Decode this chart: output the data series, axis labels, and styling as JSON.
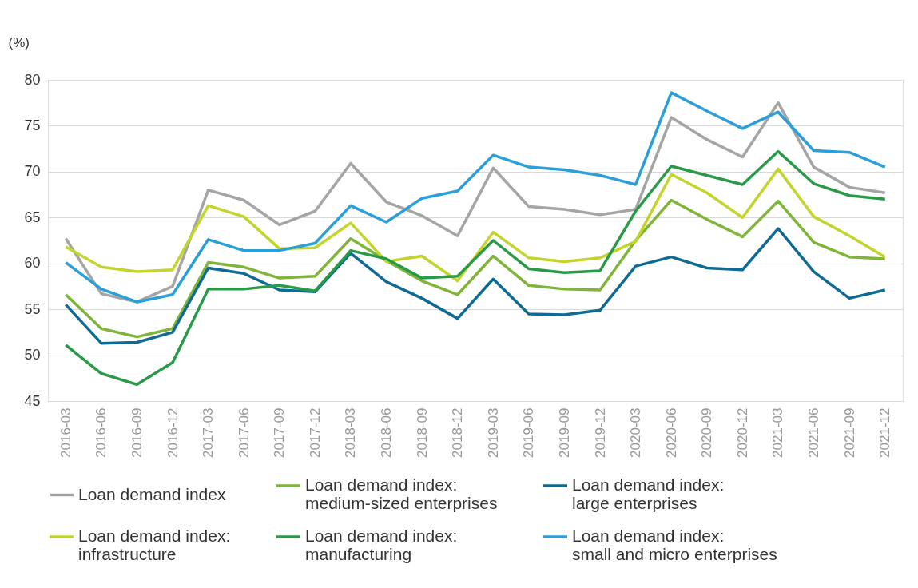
{
  "chart_data": {
    "type": "line",
    "ylabel": "(%)",
    "categories": [
      "2016-03",
      "2016-06",
      "2016-09",
      "2016-12",
      "2017-03",
      "2017-06",
      "2017-09",
      "2017-12",
      "2018-03",
      "2018-06",
      "2018-09",
      "2018-12",
      "2019-03",
      "2019-06",
      "2019-09",
      "2019-12",
      "2020-03",
      "2020-06",
      "2020-09",
      "2020-12",
      "2021-03",
      "2021-06",
      "2021-09",
      "2021-12"
    ],
    "ylim": [
      45,
      80
    ],
    "yticks": [
      45,
      50,
      55,
      60,
      65,
      70,
      75,
      80
    ],
    "grid": "y",
    "legend": "bottom",
    "marker": "none",
    "line_style": "solid",
    "series": [
      {
        "name": "Loan demand index",
        "color": "#a5a5a5",
        "values": [
          62.7,
          56.7,
          55.8,
          57.5,
          68.0,
          66.9,
          64.2,
          65.7,
          70.9,
          66.7,
          65.2,
          63.0,
          70.4,
          66.2,
          65.9,
          65.3,
          65.9,
          75.9,
          73.5,
          71.6,
          77.5,
          70.5,
          68.3,
          67.7
        ]
      },
      {
        "name": "Loan demand index:\nmedium-sized enterprises",
        "color": "#7fb539",
        "values": [
          56.6,
          52.9,
          52.0,
          52.9,
          60.1,
          59.6,
          58.4,
          58.6,
          62.7,
          60.3,
          58.1,
          56.6,
          60.8,
          57.6,
          57.2,
          57.1,
          62.5,
          66.9,
          64.8,
          62.9,
          66.8,
          62.3,
          60.7,
          60.5
        ]
      },
      {
        "name": "Loan demand index:\nlarge enterprises",
        "color": "#0f6a94",
        "values": [
          55.5,
          51.3,
          51.4,
          52.5,
          59.5,
          58.9,
          57.1,
          56.9,
          61.1,
          58.0,
          56.2,
          54.0,
          58.3,
          54.5,
          54.4,
          54.9,
          59.7,
          60.7,
          59.5,
          59.3,
          63.8,
          59.1,
          56.2,
          57.1
        ]
      },
      {
        "name": "Loan demand index:\ninfrastructure",
        "color": "#c3d52a",
        "values": [
          61.8,
          59.6,
          59.1,
          59.3,
          66.3,
          65.1,
          61.6,
          61.7,
          64.4,
          60.2,
          60.8,
          58.1,
          63.4,
          60.6,
          60.2,
          60.6,
          62.4,
          69.7,
          67.7,
          65.0,
          70.3,
          65.1,
          63.0,
          60.7
        ]
      },
      {
        "name": "Loan demand index:\nmanufacturing",
        "color": "#2a9a48",
        "values": [
          51.1,
          48.0,
          46.8,
          49.2,
          57.2,
          57.2,
          57.6,
          57.0,
          61.4,
          60.5,
          58.4,
          58.6,
          62.5,
          59.4,
          59.0,
          59.2,
          65.7,
          70.6,
          69.6,
          68.6,
          72.2,
          68.7,
          67.4,
          67.0
        ]
      },
      {
        "name": "Loan demand index:\nsmall and micro enterprises",
        "color": "#2a9fd8",
        "values": [
          60.1,
          57.2,
          55.8,
          56.6,
          62.6,
          61.4,
          61.4,
          62.2,
          66.3,
          64.5,
          67.1,
          67.9,
          71.8,
          70.5,
          70.2,
          69.6,
          68.6,
          78.6,
          76.6,
          74.7,
          76.5,
          72.3,
          72.1,
          70.5
        ]
      }
    ]
  }
}
